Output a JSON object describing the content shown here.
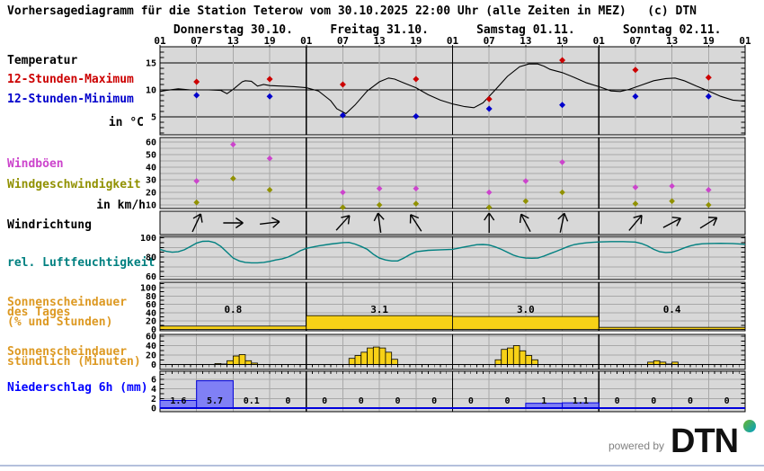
{
  "header": {
    "title": "Vorhersagediagramm für die Station Teterow vom 30.10.2025 22:00 Uhr (alle Zeiten in MEZ)   (c) DTN"
  },
  "labels": {
    "temperature": "Temperatur",
    "max12": "12-Stunden-Maximum",
    "min12": "12-Stunden-Minimum",
    "temp_unit": "in °C",
    "gusts": "Windböen",
    "wind_speed": "Windgeschwindigkeit",
    "wind_unit": "in km/h",
    "wind_dir": "Windrichtung",
    "humidity": "rel. Luftfeuchtigkeit",
    "sun_day_1": "Sonnenscheindauer",
    "sun_day_2": "des Tages",
    "sun_day_3": "(% und Stunden)",
    "sun_hr_1": "Sonnenscheindauer",
    "sun_hr_2": "stündlich (Minuten)",
    "precip": "Niederschlag 6h (mm)"
  },
  "footer": {
    "powered_by": "powered by",
    "logo_text": "DTN"
  },
  "colors": {
    "panel_bg": "#d8d8d8",
    "grid_minor": "#a8a8a8",
    "grid_major": "#000000",
    "temp_curve": "#000000",
    "temp_max": "#cc0000",
    "temp_min": "#0000cc",
    "gusts": "#cc44cc",
    "wind_speed": "#919100",
    "humidity": "#008080",
    "sun_fill": "#f7d117",
    "sun_stroke": "#000000",
    "precip_fill": "#8080f5",
    "precip_stroke": "#0000dd",
    "label_orange": "#dd9922"
  },
  "chart_data": {
    "type": "meteogram",
    "hours_total": 96,
    "days": [
      {
        "label": "Donnerstag 30.10."
      },
      {
        "label": "Freitag 31.10."
      },
      {
        "label": "Samstag 01.11."
      },
      {
        "label": "Sonntag 02.11."
      }
    ],
    "hour_label_pattern": [
      "01",
      "07",
      "13",
      "19"
    ],
    "closing_hour_label": "01",
    "panels": {
      "temperature": {
        "unit": "°C",
        "yticks": [
          5,
          10,
          15
        ],
        "ylim": [
          2,
          18
        ],
        "curve": [
          [
            0,
            9.7
          ],
          [
            1,
            9.9
          ],
          [
            3,
            10.2
          ],
          [
            5,
            10
          ],
          [
            8,
            10
          ],
          [
            10,
            9.9
          ],
          [
            11,
            9.3
          ],
          [
            12,
            10.1
          ],
          [
            13.5,
            11.5
          ],
          [
            14,
            11.7
          ],
          [
            15,
            11.6
          ],
          [
            16,
            10.7
          ],
          [
            17,
            11
          ],
          [
            18,
            10.8
          ],
          [
            20,
            10.7
          ],
          [
            22,
            10.6
          ],
          [
            24,
            10.4
          ],
          [
            26,
            9.8
          ],
          [
            28,
            8
          ],
          [
            29,
            6.5
          ],
          [
            30.5,
            5.6
          ],
          [
            32,
            7.2
          ],
          [
            34,
            9.8
          ],
          [
            36,
            11.5
          ],
          [
            37.5,
            12.2
          ],
          [
            38.5,
            12
          ],
          [
            40,
            11.3
          ],
          [
            42,
            10.4
          ],
          [
            44,
            9.1
          ],
          [
            46,
            8.1
          ],
          [
            48,
            7.4
          ],
          [
            50,
            6.9
          ],
          [
            51.5,
            6.7
          ],
          [
            53,
            7.6
          ],
          [
            55,
            10
          ],
          [
            57,
            12.5
          ],
          [
            59,
            14.3
          ],
          [
            60.5,
            14.8
          ],
          [
            62,
            14.8
          ],
          [
            63,
            14.4
          ],
          [
            64,
            13.8
          ],
          [
            66,
            13.2
          ],
          [
            68,
            12.3
          ],
          [
            70,
            11.3
          ],
          [
            72,
            10.6
          ],
          [
            74,
            9.8
          ],
          [
            75.5,
            9.7
          ],
          [
            77,
            10.1
          ],
          [
            79,
            10.9
          ],
          [
            81,
            11.7
          ],
          [
            83,
            12.1
          ],
          [
            84.5,
            12.2
          ],
          [
            86,
            11.7
          ],
          [
            88,
            10.7
          ],
          [
            90,
            9.8
          ],
          [
            92,
            8.8
          ],
          [
            94,
            8.1
          ],
          [
            96,
            7.9
          ]
        ],
        "max_points": [
          [
            6,
            11.5
          ],
          [
            18,
            12
          ],
          [
            30,
            11
          ],
          [
            42,
            12
          ],
          [
            54,
            8.3
          ],
          [
            66,
            15.5
          ],
          [
            78,
            13.7
          ],
          [
            90,
            12.3
          ]
        ],
        "min_points": [
          [
            6,
            9
          ],
          [
            18,
            8.8
          ],
          [
            30,
            5.3
          ],
          [
            42,
            5.1
          ],
          [
            54,
            6.5
          ],
          [
            66,
            7.2
          ],
          [
            78,
            8.8
          ],
          [
            90,
            8.8
          ]
        ]
      },
      "wind": {
        "unit": "km/h",
        "yticks": [
          10,
          20,
          30,
          40,
          50,
          60
        ],
        "ylim": [
          7,
          64
        ],
        "gusts": [
          [
            6,
            29
          ],
          [
            12,
            58
          ],
          [
            18,
            47
          ],
          [
            30,
            20
          ],
          [
            36,
            23
          ],
          [
            42,
            23
          ],
          [
            54,
            20
          ],
          [
            60,
            29
          ],
          [
            66,
            44
          ],
          [
            78,
            24
          ],
          [
            84,
            25
          ],
          [
            90,
            22
          ]
        ],
        "speed": [
          [
            6,
            12
          ],
          [
            12,
            31
          ],
          [
            18,
            22
          ],
          [
            30,
            8
          ],
          [
            36,
            10
          ],
          [
            42,
            11
          ],
          [
            54,
            8
          ],
          [
            60,
            13
          ],
          [
            66,
            20
          ],
          [
            78,
            11
          ],
          [
            84,
            13
          ],
          [
            90,
            10
          ]
        ]
      },
      "wind_direction": {
        "arrows": [
          {
            "h": 6,
            "deg": 25
          },
          {
            "h": 12,
            "deg": 90
          },
          {
            "h": 18,
            "deg": 83
          },
          {
            "h": 30,
            "deg": 42
          },
          {
            "h": 36,
            "deg": -8
          },
          {
            "h": 42,
            "deg": -33
          },
          {
            "h": 54,
            "deg": 0
          },
          {
            "h": 60,
            "deg": -28
          },
          {
            "h": 66,
            "deg": 12
          },
          {
            "h": 78,
            "deg": 40
          },
          {
            "h": 84,
            "deg": 62
          },
          {
            "h": 90,
            "deg": 58
          }
        ]
      },
      "humidity": {
        "unit": "%",
        "yticks": [
          100,
          80,
          60
        ],
        "ylim": [
          56,
          102
        ],
        "curve": [
          [
            0,
            88
          ],
          [
            1,
            86
          ],
          [
            2,
            85
          ],
          [
            3,
            85.5
          ],
          [
            4,
            87.5
          ],
          [
            5,
            91
          ],
          [
            6,
            94.5
          ],
          [
            7,
            96.3
          ],
          [
            8,
            96.5
          ],
          [
            9,
            95
          ],
          [
            10,
            91
          ],
          [
            11,
            85
          ],
          [
            12,
            79
          ],
          [
            13,
            76
          ],
          [
            14,
            74.5
          ],
          [
            15,
            74
          ],
          [
            16,
            74
          ],
          [
            17,
            74.5
          ],
          [
            18,
            75.5
          ],
          [
            19,
            77
          ],
          [
            20,
            78
          ],
          [
            21,
            80
          ],
          [
            22,
            83
          ],
          [
            23,
            86.5
          ],
          [
            24,
            89
          ],
          [
            26,
            91.5
          ],
          [
            28,
            93.5
          ],
          [
            30,
            95
          ],
          [
            31,
            95.2
          ],
          [
            32,
            93.5
          ],
          [
            33,
            91
          ],
          [
            34,
            88
          ],
          [
            35,
            83
          ],
          [
            36,
            79
          ],
          [
            37,
            77
          ],
          [
            38,
            76
          ],
          [
            39,
            76
          ],
          [
            40,
            79
          ],
          [
            41,
            82.5
          ],
          [
            42,
            85.5
          ],
          [
            44,
            87
          ],
          [
            46,
            87.5
          ],
          [
            48,
            88
          ],
          [
            50,
            90.5
          ],
          [
            52,
            92.8
          ],
          [
            53,
            93
          ],
          [
            54,
            92.5
          ],
          [
            55,
            90.5
          ],
          [
            56,
            88
          ],
          [
            57,
            85
          ],
          [
            58,
            82
          ],
          [
            59,
            80
          ],
          [
            60,
            79
          ],
          [
            61,
            78.8
          ],
          [
            62,
            79
          ],
          [
            63,
            81
          ],
          [
            64,
            83.5
          ],
          [
            65,
            86
          ],
          [
            66,
            88.5
          ],
          [
            67,
            91
          ],
          [
            68,
            93
          ],
          [
            69,
            94
          ],
          [
            70,
            94.8
          ],
          [
            71,
            95.3
          ],
          [
            72,
            95.6
          ],
          [
            74,
            96
          ],
          [
            76,
            96
          ],
          [
            78,
            95.5
          ],
          [
            79,
            94
          ],
          [
            80,
            91.5
          ],
          [
            81,
            88
          ],
          [
            82,
            85.5
          ],
          [
            83,
            84.7
          ],
          [
            84,
            85
          ],
          [
            85,
            87
          ],
          [
            86,
            89.5
          ],
          [
            87,
            91.5
          ],
          [
            88,
            93
          ],
          [
            89,
            93.8
          ],
          [
            90,
            94
          ],
          [
            92,
            94.2
          ],
          [
            94,
            94
          ],
          [
            96,
            93.2
          ]
        ]
      },
      "sunshine_day": {
        "yticks": [
          0,
          20,
          40,
          60,
          80,
          100
        ],
        "ylim": [
          0,
          113
        ],
        "days": [
          {
            "percent": 8,
            "hours_label": "0.8"
          },
          {
            "percent": 33,
            "hours_label": "3.1"
          },
          {
            "percent": 31,
            "hours_label": "3.0"
          },
          {
            "percent": 5,
            "hours_label": "0.4"
          }
        ]
      },
      "sunshine_hourly": {
        "unit": "Minuten",
        "yticks": [
          0,
          20,
          40,
          60
        ],
        "ylim": [
          0,
          64
        ],
        "bars": [
          [
            9,
            2
          ],
          [
            10,
            1
          ],
          [
            11,
            8
          ],
          [
            12,
            18
          ],
          [
            13,
            21
          ],
          [
            14,
            8
          ],
          [
            15,
            3
          ],
          [
            31,
            13
          ],
          [
            32,
            19
          ],
          [
            33,
            26
          ],
          [
            34,
            35
          ],
          [
            35,
            37
          ],
          [
            36,
            35
          ],
          [
            37,
            26
          ],
          [
            38,
            11
          ],
          [
            55,
            10
          ],
          [
            56,
            32
          ],
          [
            57,
            35
          ],
          [
            58,
            40
          ],
          [
            59,
            29
          ],
          [
            60,
            19
          ],
          [
            61,
            10
          ],
          [
            80,
            5
          ],
          [
            81,
            8
          ],
          [
            82,
            5
          ],
          [
            83,
            1
          ],
          [
            84,
            5
          ]
        ]
      },
      "precipitation_6h": {
        "unit": "mm",
        "yticks": [
          0,
          2,
          4,
          6
        ],
        "ylim": [
          0,
          7.5
        ],
        "values": [
          1.6,
          5.7,
          0.1,
          0,
          0,
          0,
          0,
          0,
          0,
          0,
          1,
          1.1,
          0,
          0,
          0,
          0
        ],
        "labels": [
          "1.6",
          "5.7",
          "0.1",
          "0",
          "0",
          "0",
          "0",
          "0",
          "0",
          "0",
          "1",
          "1.1",
          "0",
          "0",
          "0",
          "0"
        ]
      }
    }
  }
}
